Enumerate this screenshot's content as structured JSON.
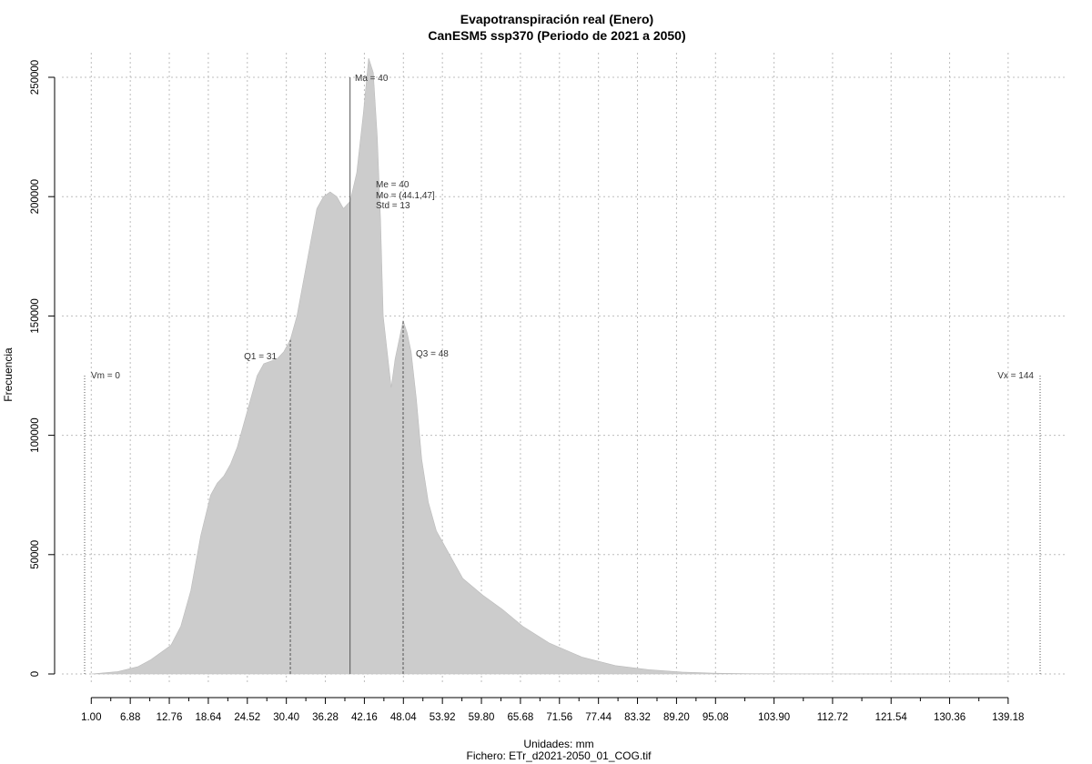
{
  "chart_data": {
    "type": "area",
    "title": "Evapotranspiración real (Enero)",
    "subtitle": "CanESM5 ssp370 (Periodo de 2021 a 2050)",
    "xlabel": "Unidades: mm",
    "file_label": "Fichero: ETr_d2021-2050_01_COG.tif",
    "ylabel": "Frecuencia",
    "xlim": [
      0,
      144
    ],
    "ylim": [
      0,
      250000
    ],
    "grid": true,
    "x_ticks": [
      "1.00",
      "6.88",
      "12.76",
      "18.64",
      "24.52",
      "30.40",
      "36.28",
      "42.16",
      "48.04",
      "53.92",
      "59.80",
      "65.68",
      "71.56",
      "77.44",
      "83.32",
      "89.20",
      "95.08",
      "103.90",
      "112.72",
      "121.54",
      "130.36",
      "139.18"
    ],
    "y_ticks": [
      "0",
      "50000",
      "100000",
      "150000",
      "200000",
      "250000"
    ],
    "series": [
      {
        "values": [
          [
            1,
            0
          ],
          [
            5,
            1000
          ],
          [
            8,
            3000
          ],
          [
            10,
            6000
          ],
          [
            13,
            12000
          ],
          [
            14.5,
            20000
          ],
          [
            16,
            35000
          ],
          [
            17.5,
            58000
          ],
          [
            19,
            75000
          ],
          [
            20,
            80000
          ],
          [
            21,
            83000
          ],
          [
            22,
            88000
          ],
          [
            23,
            95000
          ],
          [
            24,
            105000
          ],
          [
            25,
            115000
          ],
          [
            26,
            125000
          ],
          [
            27,
            130000
          ],
          [
            29,
            132000
          ],
          [
            30,
            135000
          ],
          [
            31,
            140000
          ],
          [
            32,
            150000
          ],
          [
            33,
            165000
          ],
          [
            34,
            180000
          ],
          [
            35,
            195000
          ],
          [
            36,
            200000
          ],
          [
            37,
            202000
          ],
          [
            38,
            200000
          ],
          [
            39,
            195000
          ],
          [
            40,
            198000
          ],
          [
            41,
            210000
          ],
          [
            42,
            235000
          ],
          [
            42.8,
            258000
          ],
          [
            43.5,
            252000
          ],
          [
            44.1,
            225000
          ],
          [
            44.6,
            190000
          ],
          [
            45,
            150000
          ],
          [
            45.6,
            135000
          ],
          [
            46.2,
            120000
          ],
          [
            46.8,
            132000
          ],
          [
            47.4,
            140000
          ],
          [
            48,
            148000
          ],
          [
            48.6,
            143000
          ],
          [
            49.2,
            135000
          ],
          [
            50,
            115000
          ],
          [
            50.8,
            90000
          ],
          [
            51.8,
            72000
          ],
          [
            53,
            60000
          ],
          [
            55,
            50000
          ],
          [
            57,
            40000
          ],
          [
            60,
            33000
          ],
          [
            63,
            27000
          ],
          [
            66,
            20000
          ],
          [
            70,
            13000
          ],
          [
            75,
            7000
          ],
          [
            80,
            3500
          ],
          [
            85,
            1800
          ],
          [
            90,
            800
          ],
          [
            95,
            300
          ],
          [
            100,
            100
          ],
          [
            110,
            30
          ],
          [
            125,
            5
          ],
          [
            140,
            0
          ]
        ]
      }
    ],
    "annotations": {
      "vm": {
        "label": "Vm = 0",
        "value": 0
      },
      "q1": {
        "label": "Q1 = 31",
        "value": 31
      },
      "ma": {
        "label": "Ma = 40",
        "value": 40
      },
      "q3": {
        "label": "Q3 = 48",
        "value": 48
      },
      "vx": {
        "label": "Vx = 144",
        "value": 144
      },
      "stats": [
        "Me = 40",
        "Mo = (44.1,47]",
        "Std = 13"
      ]
    },
    "colors": {
      "fill": "#cccccc",
      "grid": "#bdbdbd",
      "axis": "#000000",
      "marker_line": "#555555"
    }
  }
}
